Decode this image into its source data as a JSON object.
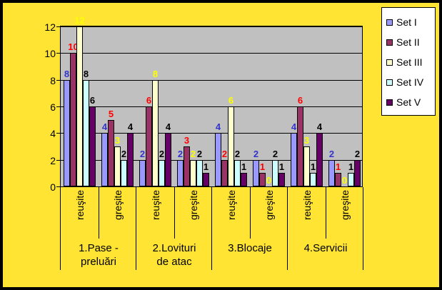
{
  "chart_data": {
    "type": "bar",
    "title": "",
    "ylim": [
      0,
      12
    ],
    "yticks": [
      0,
      2,
      4,
      6,
      8,
      10,
      12
    ],
    "grid": true,
    "legend_position": "right",
    "chart_bg": "#ffe433",
    "plot_bg": "#c0c0c0",
    "x_labels": [
      "reuşite",
      "greşite",
      "reuşite",
      "greşite",
      "reuşite",
      "greşite",
      "reuşite",
      "greşite"
    ],
    "group_labels": [
      {
        "lines": [
          "1.Pase -",
          "preluări"
        ]
      },
      {
        "lines": [
          "2.Lovituri",
          "de atac"
        ]
      },
      {
        "lines": [
          "3.Blocaje"
        ]
      },
      {
        "lines": [
          "4.Servicii"
        ]
      }
    ],
    "series": [
      {
        "name": "Set I",
        "color": "#9999ff",
        "label_color": "#3333cc",
        "values": [
          8,
          4,
          2,
          2,
          4,
          2,
          4,
          2
        ]
      },
      {
        "name": "Set II",
        "color": "#993366",
        "label_color": "#ff0000",
        "values": [
          10,
          5,
          6,
          3,
          2,
          1,
          6,
          1
        ]
      },
      {
        "name": "Set III",
        "color": "#ffffcc",
        "label_color": "#ffff00",
        "values": [
          12,
          3,
          8,
          2,
          6,
          0,
          3,
          0
        ]
      },
      {
        "name": "Set IV",
        "color": "#ccffff",
        "label_color": "#000000",
        "values": [
          8,
          2,
          2,
          2,
          2,
          2,
          1,
          1
        ]
      },
      {
        "name": "Set V",
        "color": "#660066",
        "label_color": "#000000",
        "values": [
          6,
          4,
          4,
          1,
          1,
          1,
          4,
          2
        ]
      }
    ]
  }
}
